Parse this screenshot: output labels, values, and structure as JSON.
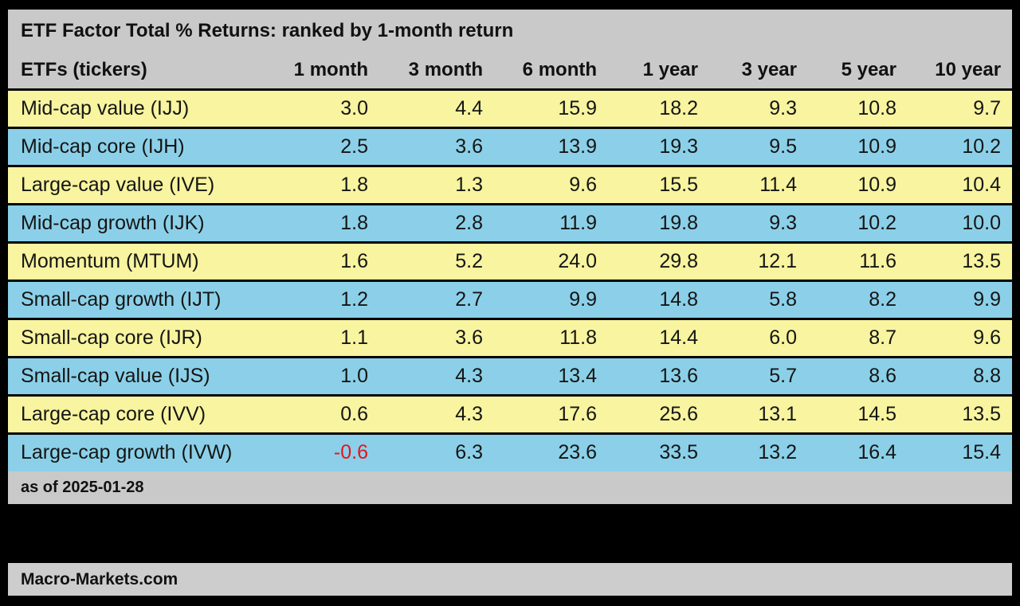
{
  "title": "ETF Factor Total % Returns: ranked by 1-month return",
  "table": {
    "columns": [
      "ETFs (tickers)",
      "1 month",
      "3 month",
      "6 month",
      "1 year",
      "3 year",
      "5 year",
      "10 year"
    ],
    "rows": [
      {
        "label": "Mid-cap value (IJJ)",
        "values": [
          "3.0",
          "4.4",
          "15.9",
          "18.2",
          "9.3",
          "10.8",
          "9.7"
        ]
      },
      {
        "label": "Mid-cap core (IJH)",
        "values": [
          "2.5",
          "3.6",
          "13.9",
          "19.3",
          "9.5",
          "10.9",
          "10.2"
        ]
      },
      {
        "label": "Large-cap value (IVE)",
        "values": [
          "1.8",
          "1.3",
          "9.6",
          "15.5",
          "11.4",
          "10.9",
          "10.4"
        ]
      },
      {
        "label": "Mid-cap growth (IJK)",
        "values": [
          "1.8",
          "2.8",
          "11.9",
          "19.8",
          "9.3",
          "10.2",
          "10.0"
        ]
      },
      {
        "label": "Momentum (MTUM)",
        "values": [
          "1.6",
          "5.2",
          "24.0",
          "29.8",
          "12.1",
          "11.6",
          "13.5"
        ]
      },
      {
        "label": "Small-cap growth (IJT)",
        "values": [
          "1.2",
          "2.7",
          "9.9",
          "14.8",
          "5.8",
          "8.2",
          "9.9"
        ]
      },
      {
        "label": "Small-cap core (IJR)",
        "values": [
          "1.1",
          "3.6",
          "11.8",
          "14.4",
          "6.0",
          "8.7",
          "9.6"
        ]
      },
      {
        "label": "Small-cap value (IJS)",
        "values": [
          "1.0",
          "4.3",
          "13.4",
          "13.6",
          "5.7",
          "8.6",
          "8.8"
        ]
      },
      {
        "label": "Large-cap core (IVV)",
        "values": [
          "0.6",
          "4.3",
          "17.6",
          "25.6",
          "13.1",
          "14.5",
          "13.5"
        ]
      },
      {
        "label": "Large-cap growth (IVW)",
        "values": [
          "-0.6",
          "6.3",
          "23.6",
          "33.5",
          "13.2",
          "16.4",
          "15.4"
        ]
      }
    ],
    "as_of": "as of 2025-01-28"
  },
  "brand": "Macro-Markets.com",
  "colors": {
    "background": "#000000",
    "header_gray": "#c9c9c9",
    "row_yellow": "#f8f49f",
    "row_blue": "#8bd0e8",
    "brand_bar_gray": "#cdcdcd",
    "text": "#151515",
    "negative_value": "#e8131c"
  },
  "chart_data": {
    "type": "table",
    "title": "ETF Factor Total % Returns: ranked by 1-month return",
    "columns": [
      "ETFs (tickers)",
      "1 month",
      "3 month",
      "6 month",
      "1 year",
      "3 year",
      "5 year",
      "10 year"
    ],
    "rows": [
      [
        "Mid-cap value (IJJ)",
        3.0,
        4.4,
        15.9,
        18.2,
        9.3,
        10.8,
        9.7
      ],
      [
        "Mid-cap core (IJH)",
        2.5,
        3.6,
        13.9,
        19.3,
        9.5,
        10.9,
        10.2
      ],
      [
        "Large-cap value (IVE)",
        1.8,
        1.3,
        9.6,
        15.5,
        11.4,
        10.9,
        10.4
      ],
      [
        "Mid-cap growth (IJK)",
        1.8,
        2.8,
        11.9,
        19.8,
        9.3,
        10.2,
        10.0
      ],
      [
        "Momentum (MTUM)",
        1.6,
        5.2,
        24.0,
        29.8,
        12.1,
        11.6,
        13.5
      ],
      [
        "Small-cap growth (IJT)",
        1.2,
        2.7,
        9.9,
        14.8,
        5.8,
        8.2,
        9.9
      ],
      [
        "Small-cap core (IJR)",
        1.1,
        3.6,
        11.8,
        14.4,
        6.0,
        8.7,
        9.6
      ],
      [
        "Small-cap value (IJS)",
        1.0,
        4.3,
        13.4,
        13.6,
        5.7,
        8.6,
        8.8
      ],
      [
        "Large-cap core (IVV)",
        0.6,
        4.3,
        17.6,
        25.6,
        13.1,
        14.5,
        13.5
      ],
      [
        "Large-cap growth (IVW)",
        -0.6,
        6.3,
        23.6,
        33.5,
        13.2,
        16.4,
        15.4
      ]
    ],
    "as_of": "2025-01-28",
    "source": "Macro-Markets.com",
    "sorted_by": "1 month",
    "row_stripe_pattern": [
      "yellow",
      "blue"
    ]
  }
}
